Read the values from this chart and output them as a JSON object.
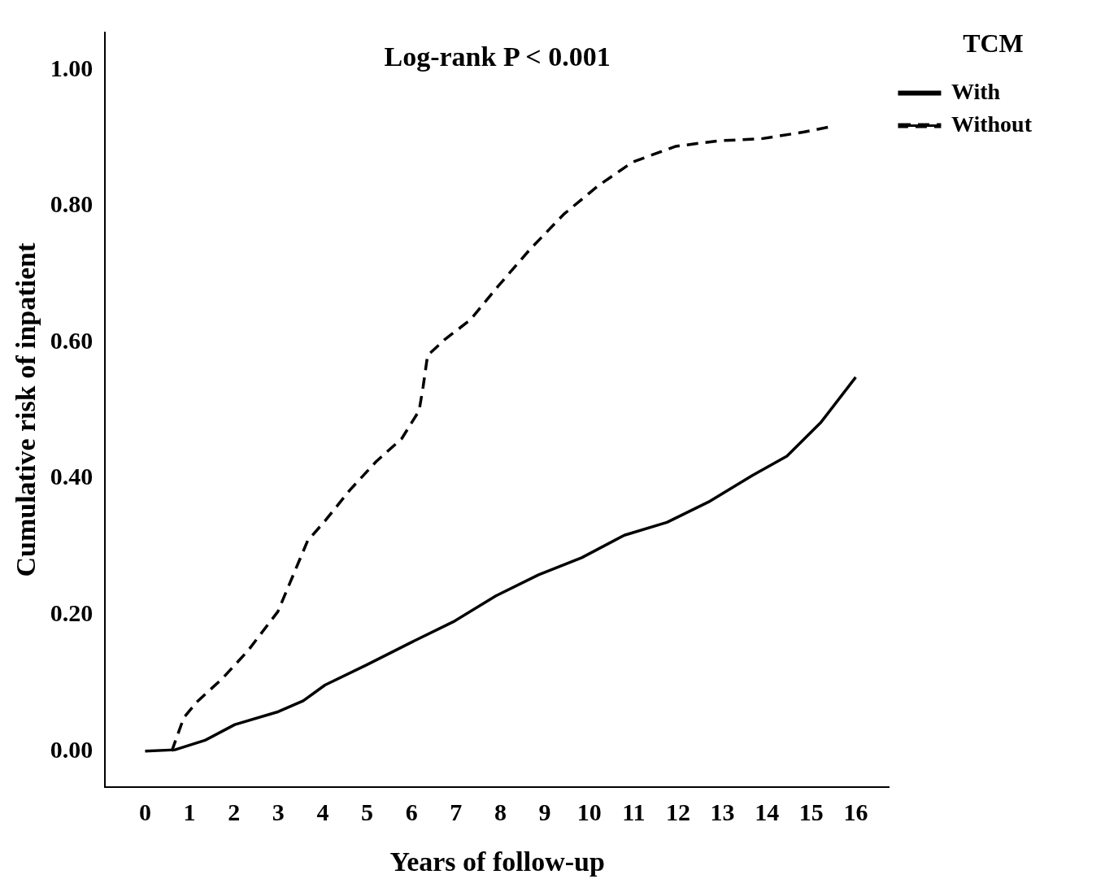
{
  "chart_data": {
    "type": "line",
    "xlabel": "Years of follow-up",
    "ylabel": "Cumulative risk of inpatient",
    "legend_title": "TCM",
    "annotations": [
      "Log-rank P < 0.001"
    ],
    "xlim": [
      -0.9,
      16.76
    ],
    "ylim": [
      -0.053,
      1.055
    ],
    "xticks": [
      0,
      1,
      2,
      3,
      4,
      5,
      6,
      7,
      8,
      9,
      10,
      11,
      12,
      13,
      14,
      15,
      16
    ],
    "yticks": [
      {
        "value": 0,
        "label": "0.00"
      },
      {
        "value": 0.2,
        "label": "0.20"
      },
      {
        "value": 0.4,
        "label": "0.40"
      },
      {
        "value": 0.6,
        "label": "0.60"
      },
      {
        "value": 0.8,
        "label": "0.80"
      },
      {
        "value": 1,
        "label": "1.00"
      }
    ],
    "grid": false,
    "legend": "top right",
    "marker": "none",
    "series": [
      {
        "name": "With",
        "color": "#000000",
        "line_style": "solid",
        "x": [
          0,
          0.67,
          1.35,
          2.02,
          3,
          3.56,
          4.05,
          5,
          5.97,
          6.94,
          7.9,
          8.86,
          9.83,
          10.79,
          11.75,
          12.72,
          13.68,
          14.45,
          15.22,
          16
        ],
        "values": [
          0,
          0.002,
          0.016,
          0.039,
          0.058,
          0.074,
          0.097,
          0.127,
          0.159,
          0.19,
          0.228,
          0.259,
          0.284,
          0.317,
          0.336,
          0.367,
          0.405,
          0.433,
          0.483,
          0.549
        ]
      },
      {
        "name": "Without",
        "color": "#000000",
        "line_style": "dashed",
        "x": [
          0.6,
          0.87,
          1.16,
          1.73,
          2.31,
          2.99,
          3.66,
          4.05,
          4.62,
          5.2,
          5.78,
          6.17,
          6.26,
          6.36,
          6.74,
          7.32,
          7.9,
          8.67,
          9.44,
          10.2,
          10.98,
          11.95,
          12.9,
          13.87,
          14.84,
          15.45
        ],
        "values": [
          0,
          0.049,
          0.072,
          0.106,
          0.147,
          0.205,
          0.309,
          0.338,
          0.384,
          0.425,
          0.459,
          0.5,
          0.535,
          0.581,
          0.604,
          0.633,
          0.679,
          0.737,
          0.789,
          0.83,
          0.865,
          0.888,
          0.896,
          0.899,
          0.909,
          0.917
        ]
      }
    ]
  }
}
